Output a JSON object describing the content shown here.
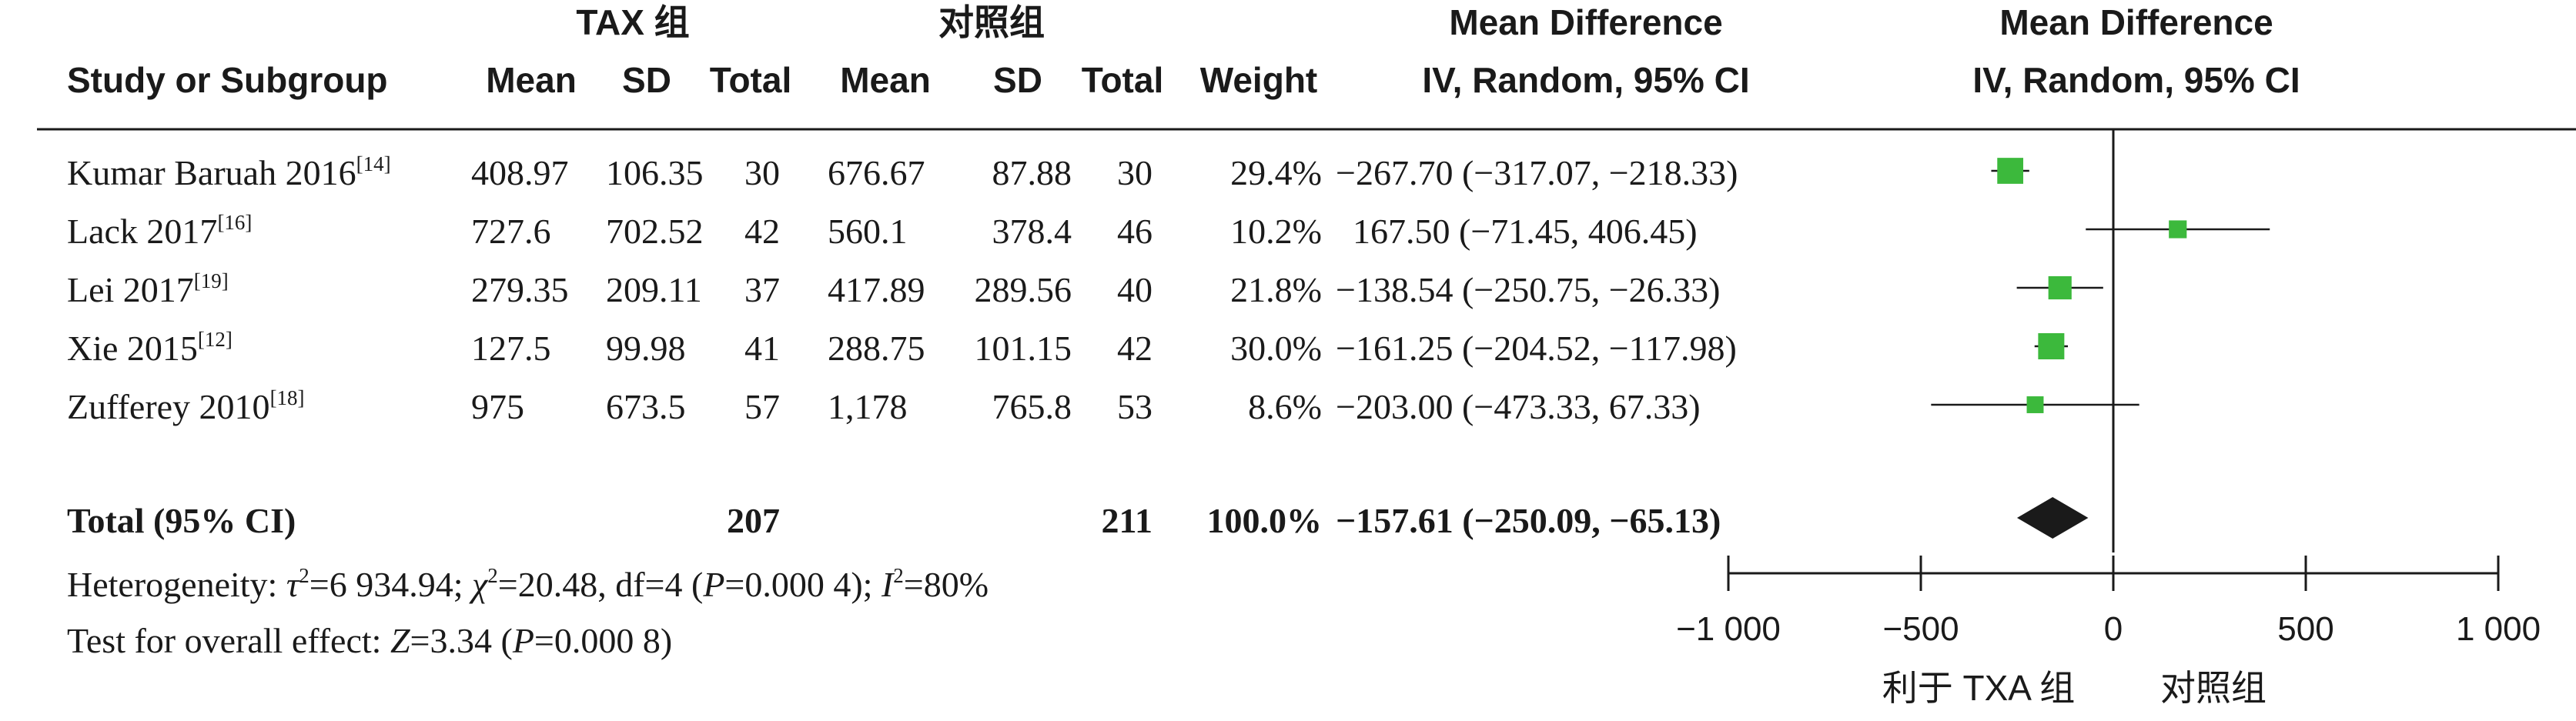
{
  "header": {
    "group1": "TAX 组",
    "group2": "对照组",
    "md_label": "Mean Difference",
    "md_method": "IV, Random, 95% CI",
    "plot_label": "Mean Difference",
    "plot_method": "IV, Random, 95% CI",
    "study_col": "Study or Subgroup",
    "mean1": "Mean",
    "sd1": "SD",
    "total1": "Total",
    "mean2": "Mean",
    "sd2": "SD",
    "total2": "Total",
    "weight": "Weight"
  },
  "studies": [
    {
      "name": "Kumar Baruah 2016",
      "ref": "[14]",
      "mean1": "408.97",
      "sd1": "106.35",
      "n1": "30",
      "mean2": "676.67",
      "sd2": "87.88",
      "n2": "30",
      "weight": "29.4%",
      "ci_text": "−267.70 (−317.07, −218.33)"
    },
    {
      "name": "Lack 2017",
      "ref": "[16]",
      "mean1": "727.6",
      "sd1": "702.52",
      "n1": "42",
      "mean2": "560.1",
      "sd2": "378.4",
      "n2": "46",
      "weight": "10.2%",
      "ci_text": "167.50 (−71.45, 406.45)"
    },
    {
      "name": "Lei 2017",
      "ref": "[19]",
      "mean1": "279.35",
      "sd1": "209.11",
      "n1": "37",
      "mean2": "417.89",
      "sd2": "289.56",
      "n2": "40",
      "weight": "21.8%",
      "ci_text": "−138.54 (−250.75, −26.33)"
    },
    {
      "name": "Xie 2015",
      "ref": "[12]",
      "mean1": "127.5",
      "sd1": "99.98",
      "n1": "41",
      "mean2": "288.75",
      "sd2": "101.15",
      "n2": "42",
      "weight": "30.0%",
      "ci_text": "−161.25 (−204.52, −117.98)"
    },
    {
      "name": "Zufferey 2010",
      "ref": "[18]",
      "mean1": "975",
      "sd1": "673.5",
      "n1": "57",
      "mean2": "1,178",
      "sd2": "765.8",
      "n2": "53",
      "weight": "8.6%",
      "ci_text": "−203.00 (−473.33, 67.33)"
    }
  ],
  "total": {
    "label": "Total (95% CI)",
    "n1": "207",
    "n2": "211",
    "weight": "100.0%",
    "ci_text": "−157.61 (−250.09, −65.13)"
  },
  "heterogeneity": {
    "prefix": "Heterogeneity: ",
    "tau": "τ",
    "tau_value": "=6 934.94; ",
    "chi": "χ",
    "chi_value": "=20.48, df=4 (",
    "p_letter": "P",
    "p_value": "=0.000 4); ",
    "i_letter": "I",
    "i_value": "=80%",
    "sup2": "2"
  },
  "overall_effect": {
    "prefix": "Test for overall effect: ",
    "z_letter": "Z",
    "z_value": "=3.34 (",
    "p_letter": "P",
    "p_value": "=0.000 8)"
  },
  "axis": {
    "tick_labels": [
      "−1 000",
      "−500",
      "0",
      "500",
      "1 000"
    ],
    "favours_left": "利于 TXA 组",
    "favours_right": "对照组"
  },
  "colors": {
    "marker": "#3cb93c",
    "diamond": "#1a1a1a",
    "line": "#1a1a1a"
  },
  "chart_data": {
    "type": "forest",
    "title": "",
    "xlabel": "",
    "xlim": [
      -1000,
      1000
    ],
    "ticks": [
      -1000,
      -500,
      0,
      500,
      1000
    ],
    "series": [
      {
        "study": "Kumar Baruah 2016",
        "md": -267.7,
        "lower": -317.07,
        "upper": -218.33,
        "weight": 29.4
      },
      {
        "study": "Lack 2017",
        "md": 167.5,
        "lower": -71.45,
        "upper": 406.45,
        "weight": 10.2
      },
      {
        "study": "Lei 2017",
        "md": -138.54,
        "lower": -250.75,
        "upper": -26.33,
        "weight": 21.8
      },
      {
        "study": "Xie 2015",
        "md": -161.25,
        "lower": -204.52,
        "upper": -117.98,
        "weight": 30.0
      },
      {
        "study": "Zufferey 2010",
        "md": -203.0,
        "lower": -473.33,
        "upper": 67.33,
        "weight": 8.6
      }
    ],
    "pooled": {
      "md": -157.61,
      "lower": -250.09,
      "upper": -65.13,
      "weight": 100.0
    }
  }
}
